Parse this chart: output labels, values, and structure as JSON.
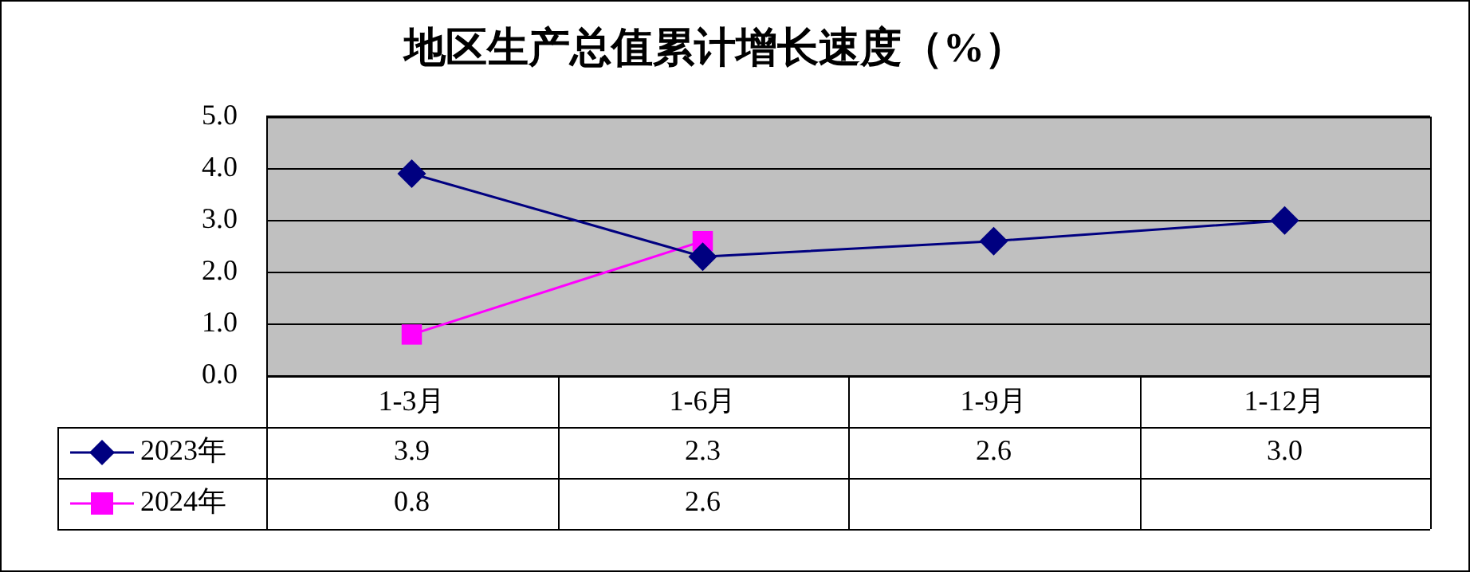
{
  "chart_data": {
    "type": "line",
    "title": "地区生产总值累计增长速度（%）",
    "categories": [
      "1-3月",
      "1-6月",
      "1-9月",
      "1-12月"
    ],
    "series": [
      {
        "name": "2023年",
        "color": "#000080",
        "marker": "diamond",
        "values": [
          3.9,
          2.3,
          2.6,
          3.0
        ],
        "value_labels": [
          "3.9",
          "2.3",
          "2.6",
          "3.0"
        ]
      },
      {
        "name": "2024年",
        "color": "#ff00ff",
        "marker": "square",
        "values": [
          0.8,
          2.6,
          null,
          null
        ],
        "value_labels": [
          "0.8",
          "2.6",
          null,
          null
        ]
      }
    ],
    "ylim": [
      0,
      5
    ],
    "yticks": [
      {
        "value": 0,
        "label": "0.0"
      },
      {
        "value": 1,
        "label": "1.0"
      },
      {
        "value": 2,
        "label": "2.0"
      },
      {
        "value": 3,
        "label": "3.0"
      },
      {
        "value": 4,
        "label": "4.0"
      },
      {
        "value": 5,
        "label": "5.0"
      }
    ],
    "grid": "y",
    "legend": "bottom"
  }
}
